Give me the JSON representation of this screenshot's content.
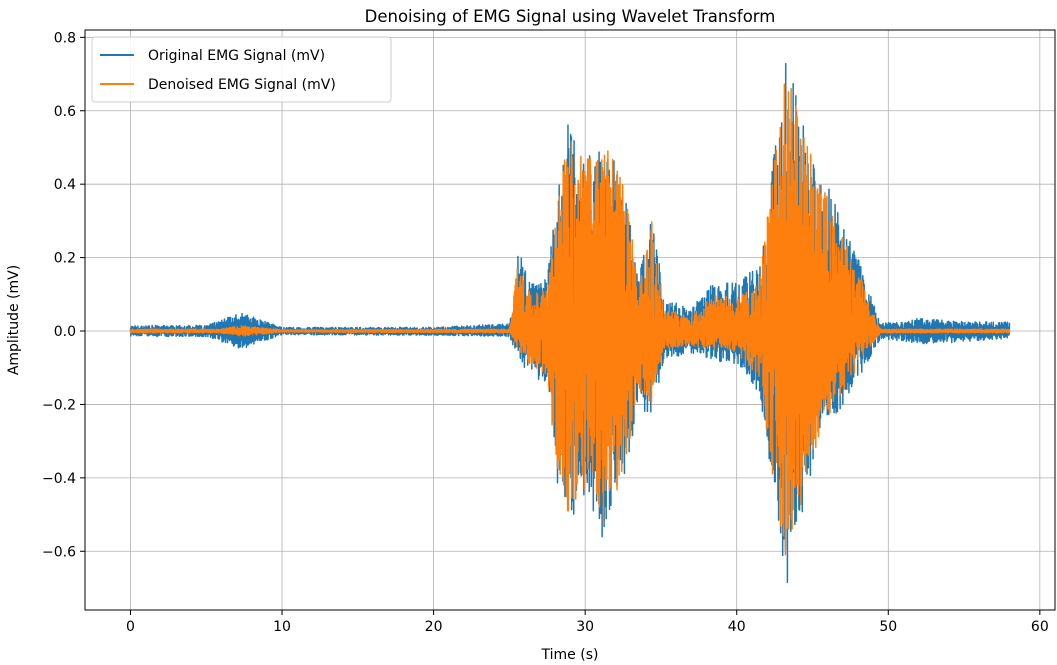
{
  "chart_data": {
    "type": "line",
    "title": "Denoising of EMG Signal using Wavelet Transform",
    "xlabel": "Time (s)",
    "ylabel": "Amplitude (mV)",
    "xlim": [
      -3,
      61
    ],
    "ylim": [
      -0.76,
      0.82
    ],
    "xticks": [
      0,
      10,
      20,
      30,
      40,
      50,
      60
    ],
    "xtick_labels": [
      "0",
      "10",
      "20",
      "30",
      "40",
      "50",
      "60"
    ],
    "yticks": [
      -0.6,
      -0.4,
      -0.2,
      0.0,
      0.2,
      0.4,
      0.6,
      0.8
    ],
    "ytick_labels": [
      "−0.6",
      "−0.4",
      "−0.2",
      "0.0",
      "0.2",
      "0.4",
      "0.6",
      "0.8"
    ],
    "grid": true,
    "legend_position": "top-left",
    "x_range": [
      0,
      58
    ],
    "series": [
      {
        "name": "Original EMG Signal (mV)",
        "color": "#1f77b4",
        "envelope": [
          {
            "x": 0,
            "max": 0.015,
            "min": -0.015
          },
          {
            "x": 5,
            "max": 0.015,
            "min": -0.015
          },
          {
            "x": 7.3,
            "max": 0.05,
            "min": -0.05
          },
          {
            "x": 10,
            "max": 0.01,
            "min": -0.01
          },
          {
            "x": 20,
            "max": 0.01,
            "min": -0.012
          },
          {
            "x": 25,
            "max": 0.02,
            "min": -0.015
          },
          {
            "x": 25.6,
            "max": 0.22,
            "min": -0.08
          },
          {
            "x": 26.5,
            "max": 0.13,
            "min": -0.13
          },
          {
            "x": 27.5,
            "max": 0.15,
            "min": -0.14
          },
          {
            "x": 28.2,
            "max": 0.38,
            "min": -0.43
          },
          {
            "x": 28.8,
            "max": 0.57,
            "min": -0.55
          },
          {
            "x": 30.2,
            "max": 0.49,
            "min": -0.45
          },
          {
            "x": 31.2,
            "max": 0.53,
            "min": -0.58
          },
          {
            "x": 32.5,
            "max": 0.45,
            "min": -0.43
          },
          {
            "x": 33.5,
            "max": 0.16,
            "min": -0.21
          },
          {
            "x": 34.4,
            "max": 0.33,
            "min": -0.23
          },
          {
            "x": 35.2,
            "max": 0.09,
            "min": -0.08
          },
          {
            "x": 37,
            "max": 0.06,
            "min": -0.06
          },
          {
            "x": 38.5,
            "max": 0.14,
            "min": -0.08
          },
          {
            "x": 40,
            "max": 0.13,
            "min": -0.09
          },
          {
            "x": 41.5,
            "max": 0.18,
            "min": -0.17
          },
          {
            "x": 42.5,
            "max": 0.5,
            "min": -0.46
          },
          {
            "x": 43.3,
            "max": 0.75,
            "min": -0.7
          },
          {
            "x": 44.5,
            "max": 0.55,
            "min": -0.47
          },
          {
            "x": 45.5,
            "max": 0.45,
            "min": -0.3
          },
          {
            "x": 46.5,
            "max": 0.35,
            "min": -0.24
          },
          {
            "x": 48,
            "max": 0.2,
            "min": -0.14
          },
          {
            "x": 48.7,
            "max": 0.12,
            "min": -0.08
          },
          {
            "x": 49.5,
            "max": 0.02,
            "min": -0.02
          },
          {
            "x": 52,
            "max": 0.035,
            "min": -0.035
          },
          {
            "x": 55,
            "max": 0.025,
            "min": -0.03
          },
          {
            "x": 58,
            "max": 0.025,
            "min": -0.02
          }
        ]
      },
      {
        "name": "Denoised EMG Signal (mV)",
        "color": "#ff7f0e",
        "envelope": [
          {
            "x": 0,
            "max": 0.005,
            "min": -0.005
          },
          {
            "x": 5.9,
            "max": 0.005,
            "min": -0.005
          },
          {
            "x": 7.3,
            "max": 0.015,
            "min": -0.015
          },
          {
            "x": 10,
            "max": 0.003,
            "min": -0.003
          },
          {
            "x": 25,
            "max": 0.005,
            "min": -0.005
          },
          {
            "x": 25.6,
            "max": 0.2,
            "min": -0.05
          },
          {
            "x": 26.5,
            "max": 0.1,
            "min": -0.1
          },
          {
            "x": 27.5,
            "max": 0.12,
            "min": -0.12
          },
          {
            "x": 28.2,
            "max": 0.35,
            "min": -0.42
          },
          {
            "x": 28.8,
            "max": 0.55,
            "min": -0.5
          },
          {
            "x": 30.2,
            "max": 0.47,
            "min": -0.43
          },
          {
            "x": 31.2,
            "max": 0.52,
            "min": -0.53
          },
          {
            "x": 32.5,
            "max": 0.43,
            "min": -0.4
          },
          {
            "x": 33.5,
            "max": 0.13,
            "min": -0.17
          },
          {
            "x": 34.4,
            "max": 0.3,
            "min": -0.2
          },
          {
            "x": 35.2,
            "max": 0.06,
            "min": -0.05
          },
          {
            "x": 37,
            "max": 0.04,
            "min": -0.04
          },
          {
            "x": 38.5,
            "max": 0.1,
            "min": -0.05
          },
          {
            "x": 40,
            "max": 0.09,
            "min": -0.06
          },
          {
            "x": 41.5,
            "max": 0.14,
            "min": -0.13
          },
          {
            "x": 42.5,
            "max": 0.48,
            "min": -0.44
          },
          {
            "x": 43.3,
            "max": 0.72,
            "min": -0.66
          },
          {
            "x": 44.5,
            "max": 0.53,
            "min": -0.45
          },
          {
            "x": 45.5,
            "max": 0.42,
            "min": -0.27
          },
          {
            "x": 46.5,
            "max": 0.32,
            "min": -0.2
          },
          {
            "x": 48,
            "max": 0.17,
            "min": -0.1
          },
          {
            "x": 48.7,
            "max": 0.08,
            "min": -0.05
          },
          {
            "x": 49.5,
            "max": 0.005,
            "min": -0.005
          },
          {
            "x": 58,
            "max": 0.005,
            "min": -0.005
          }
        ]
      }
    ]
  }
}
